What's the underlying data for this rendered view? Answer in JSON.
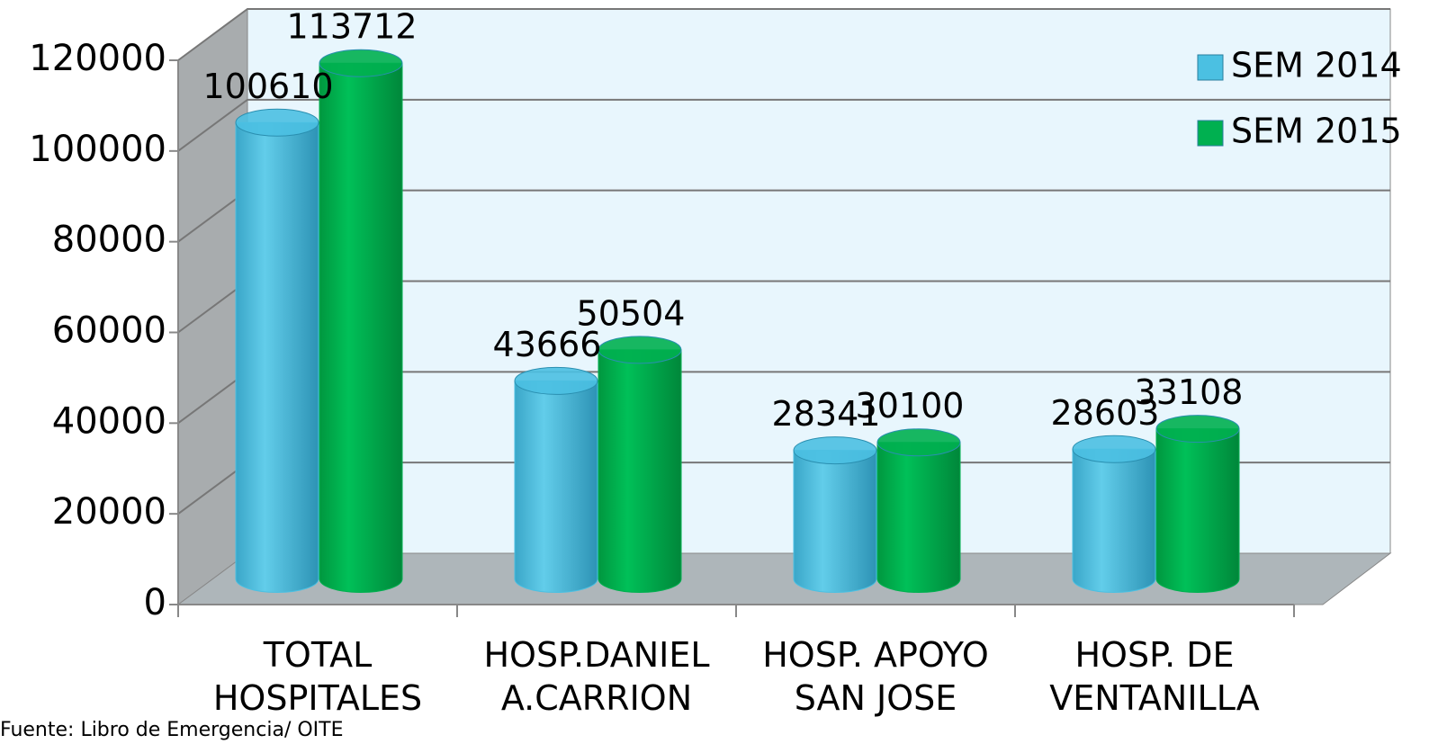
{
  "chart_data": {
    "type": "bar3d",
    "categories": [
      "TOTAL\nHOSPITALES",
      "HOSP.DANIEL\nA.CARRION",
      "HOSP. APOYO\nSAN JOSE",
      "HOSP. DE\nVENTANILLA"
    ],
    "series": [
      {
        "name": "SEM 2014",
        "color": "#4bc0e2",
        "values": [
          100610,
          43666,
          28341,
          28603
        ]
      },
      {
        "name": "SEM 2015",
        "color": "#00b050",
        "values": [
          113712,
          50504,
          30100,
          33108
        ]
      }
    ],
    "ylim": [
      0,
      120000
    ],
    "yticks": [
      0,
      20000,
      40000,
      60000,
      80000,
      100000,
      120000
    ],
    "grid": true,
    "legend": "top-right",
    "footnote": "Fuente: Libro de Emergencia/ OITE"
  }
}
